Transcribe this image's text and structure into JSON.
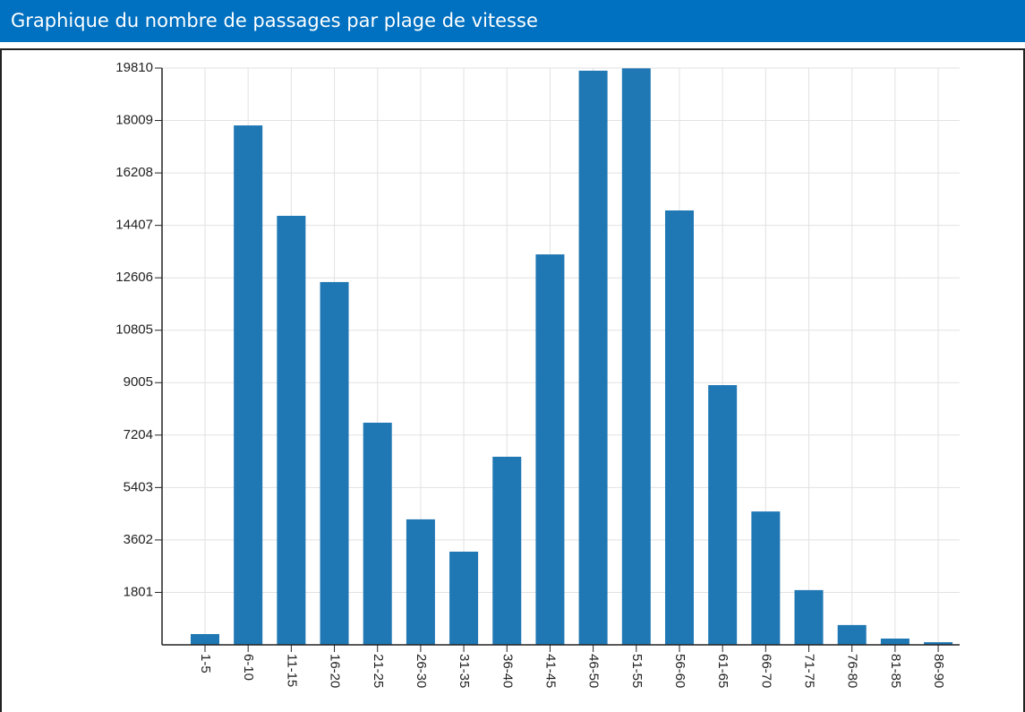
{
  "header": {
    "title": "Graphique du nombre de passages par plage de vitesse"
  },
  "chart_data": {
    "type": "bar",
    "categories": [
      "1-5",
      "6-10",
      "11-15",
      "16-20",
      "21-25",
      "26-30",
      "31-35",
      "36-40",
      "41-45",
      "46-50",
      "51-55",
      "56-60",
      "61-65",
      "66-70",
      "71-75",
      "76-80",
      "81-85",
      "86-90"
    ],
    "values": [
      370,
      17840,
      14735,
      12460,
      7630,
      4310,
      3200,
      6460,
      13410,
      19720,
      19800,
      14920,
      8920,
      4580,
      1880,
      680,
      215,
      90
    ],
    "color": "#1f77b4",
    "ylim": [
      0,
      19810
    ],
    "yticks": [
      1801,
      3602,
      5403,
      7204,
      9005,
      10805,
      12606,
      14407,
      16208,
      18009,
      19810
    ],
    "grid": true
  }
}
